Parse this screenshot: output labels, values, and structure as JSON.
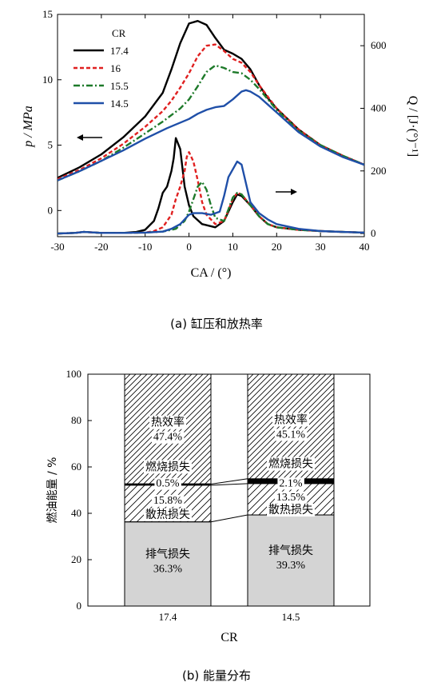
{
  "chart_data": [
    {
      "type": "line",
      "xlabel": "CA / (°)",
      "ylabel": "p / MPa",
      "y2label": "Q / [J·(°)⁻¹]",
      "xlim": [
        -30,
        40
      ],
      "ylim": [
        -2,
        15
      ],
      "y2lim": [
        -10,
        700
      ],
      "xticks": [
        "-30",
        "-20",
        "-10",
        "0",
        "10",
        "20",
        "30",
        "40"
      ],
      "yticks": [
        "0",
        "5",
        "10",
        "15"
      ],
      "y2ticks": [
        "0",
        "200",
        "400",
        "600"
      ],
      "legend": {
        "title": "CR",
        "placement": "top-left"
      },
      "caption": "(a) 缸压和放热率",
      "series": [
        {
          "name": "17.4",
          "color": "#000000",
          "style": "solid",
          "pressure": [
            [
              -30,
              2.5
            ],
            [
              -25,
              3.3
            ],
            [
              -20,
              4.3
            ],
            [
              -15,
              5.6
            ],
            [
              -10,
              7.2
            ],
            [
              -6,
              9.0
            ],
            [
              -4,
              10.8
            ],
            [
              -2,
              12.8
            ],
            [
              0,
              14.3
            ],
            [
              2,
              14.5
            ],
            [
              4,
              14.2
            ],
            [
              6,
              13.2
            ],
            [
              8,
              12.3
            ],
            [
              10,
              12.0
            ],
            [
              12,
              11.6
            ],
            [
              14,
              10.8
            ],
            [
              16,
              9.6
            ],
            [
              18,
              8.6
            ],
            [
              20,
              7.8
            ],
            [
              25,
              6.2
            ],
            [
              30,
              5.0
            ],
            [
              35,
              4.2
            ],
            [
              40,
              3.5
            ]
          ],
          "heat_release": [
            [
              -30,
              0
            ],
            [
              -26,
              2
            ],
            [
              -24,
              5
            ],
            [
              -20,
              2
            ],
            [
              -15,
              2
            ],
            [
              -12,
              5
            ],
            [
              -10,
              12
            ],
            [
              -8,
              40
            ],
            [
              -7,
              80
            ],
            [
              -6,
              130
            ],
            [
              -5,
              150
            ],
            [
              -4,
              200
            ],
            [
              -3.5,
              240
            ],
            [
              -3,
              305
            ],
            [
              -2,
              270
            ],
            [
              -1,
              150
            ],
            [
              0,
              90
            ],
            [
              1,
              55
            ],
            [
              3,
              30
            ],
            [
              6,
              20
            ],
            [
              8,
              40
            ],
            [
              10,
              100
            ],
            [
              11,
              125
            ],
            [
              12,
              120
            ],
            [
              14,
              90
            ],
            [
              16,
              55
            ],
            [
              18,
              30
            ],
            [
              20,
              20
            ],
            [
              25,
              12
            ],
            [
              30,
              8
            ],
            [
              35,
              5
            ],
            [
              40,
              3
            ]
          ]
        },
        {
          "name": "16",
          "color": "#e02020",
          "style": "dashed",
          "pressure": [
            [
              -30,
              2.4
            ],
            [
              -25,
              3.1
            ],
            [
              -20,
              4.0
            ],
            [
              -15,
              5.1
            ],
            [
              -10,
              6.4
            ],
            [
              -6,
              7.6
            ],
            [
              -4,
              8.4
            ],
            [
              -2,
              9.4
            ],
            [
              0,
              10.5
            ],
            [
              2,
              11.8
            ],
            [
              4,
              12.6
            ],
            [
              6,
              12.7
            ],
            [
              8,
              12.2
            ],
            [
              10,
              11.6
            ],
            [
              12,
              11.3
            ],
            [
              14,
              10.6
            ],
            [
              16,
              9.6
            ],
            [
              18,
              8.7
            ],
            [
              20,
              7.8
            ],
            [
              25,
              6.2
            ],
            [
              30,
              5.0
            ],
            [
              35,
              4.2
            ],
            [
              40,
              3.5
            ]
          ],
          "heat_release": [
            [
              -30,
              0
            ],
            [
              -26,
              2
            ],
            [
              -24,
              5
            ],
            [
              -20,
              2
            ],
            [
              -15,
              2
            ],
            [
              -10,
              3
            ],
            [
              -8,
              8
            ],
            [
              -6,
              20
            ],
            [
              -4,
              60
            ],
            [
              -3,
              110
            ],
            [
              -2,
              150
            ],
            [
              -1,
              200
            ],
            [
              -0.5,
              245
            ],
            [
              0,
              260
            ],
            [
              1,
              230
            ],
            [
              2,
              170
            ],
            [
              3,
              100
            ],
            [
              4,
              60
            ],
            [
              6,
              30
            ],
            [
              8,
              40
            ],
            [
              10,
              110
            ],
            [
              11,
              130
            ],
            [
              12,
              125
            ],
            [
              14,
              90
            ],
            [
              16,
              55
            ],
            [
              18,
              30
            ],
            [
              20,
              20
            ],
            [
              25,
              12
            ],
            [
              30,
              8
            ],
            [
              35,
              5
            ],
            [
              40,
              3
            ]
          ]
        },
        {
          "name": "15.5",
          "color": "#1e7a2a",
          "style": "dashdot",
          "pressure": [
            [
              -30,
              2.3
            ],
            [
              -25,
              3.0
            ],
            [
              -20,
              3.8
            ],
            [
              -15,
              4.8
            ],
            [
              -10,
              5.9
            ],
            [
              -6,
              6.8
            ],
            [
              -2,
              7.8
            ],
            [
              0,
              8.5
            ],
            [
              2,
              9.5
            ],
            [
              4,
              10.6
            ],
            [
              6,
              11.1
            ],
            [
              8,
              10.9
            ],
            [
              10,
              10.6
            ],
            [
              12,
              10.5
            ],
            [
              14,
              10.0
            ],
            [
              16,
              9.3
            ],
            [
              18,
              8.5
            ],
            [
              20,
              7.7
            ],
            [
              25,
              6.1
            ],
            [
              30,
              5.0
            ],
            [
              35,
              4.2
            ],
            [
              40,
              3.5
            ]
          ],
          "heat_release": [
            [
              -30,
              0
            ],
            [
              -26,
              2
            ],
            [
              -24,
              5
            ],
            [
              -20,
              2
            ],
            [
              -15,
              2
            ],
            [
              -10,
              3
            ],
            [
              -6,
              6
            ],
            [
              -3,
              15
            ],
            [
              -1,
              40
            ],
            [
              0,
              70
            ],
            [
              1,
              110
            ],
            [
              2,
              150
            ],
            [
              3,
              165
            ],
            [
              4,
              140
            ],
            [
              5,
              90
            ],
            [
              6,
              50
            ],
            [
              8,
              40
            ],
            [
              10,
              115
            ],
            [
              11,
              130
            ],
            [
              12,
              125
            ],
            [
              14,
              90
            ],
            [
              16,
              55
            ],
            [
              18,
              30
            ],
            [
              20,
              20
            ],
            [
              25,
              12
            ],
            [
              30,
              8
            ],
            [
              35,
              5
            ],
            [
              40,
              3
            ]
          ]
        },
        {
          "name": "14.5",
          "color": "#1f4fa8",
          "style": "solid",
          "pressure": [
            [
              -30,
              2.3
            ],
            [
              -25,
              3.0
            ],
            [
              -20,
              3.8
            ],
            [
              -15,
              4.6
            ],
            [
              -10,
              5.5
            ],
            [
              -5,
              6.3
            ],
            [
              0,
              7.0
            ],
            [
              2,
              7.4
            ],
            [
              4,
              7.7
            ],
            [
              6,
              7.9
            ],
            [
              8,
              8.0
            ],
            [
              10,
              8.5
            ],
            [
              12,
              9.1
            ],
            [
              13,
              9.2
            ],
            [
              14,
              9.1
            ],
            [
              16,
              8.7
            ],
            [
              18,
              8.1
            ],
            [
              20,
              7.5
            ],
            [
              25,
              6.0
            ],
            [
              30,
              4.9
            ],
            [
              35,
              4.1
            ],
            [
              40,
              3.5
            ]
          ],
          "heat_release": [
            [
              -30,
              0
            ],
            [
              -26,
              2
            ],
            [
              -24,
              5
            ],
            [
              -20,
              2
            ],
            [
              -15,
              2
            ],
            [
              -10,
              3
            ],
            [
              -6,
              6
            ],
            [
              -4,
              15
            ],
            [
              -2,
              30
            ],
            [
              0,
              60
            ],
            [
              1,
              65
            ],
            [
              3,
              65
            ],
            [
              5,
              60
            ],
            [
              7,
              70
            ],
            [
              8,
              120
            ],
            [
              9,
              180
            ],
            [
              10,
              205
            ],
            [
              11,
              230
            ],
            [
              12,
              220
            ],
            [
              13,
              160
            ],
            [
              14,
              100
            ],
            [
              16,
              65
            ],
            [
              18,
              45
            ],
            [
              20,
              30
            ],
            [
              25,
              15
            ],
            [
              30,
              8
            ],
            [
              35,
              5
            ],
            [
              40,
              3
            ]
          ]
        }
      ]
    },
    {
      "type": "bar",
      "stacked": true,
      "xlabel": "CR",
      "ylabel": "燃油能量 / %",
      "ylim": [
        0,
        100
      ],
      "yticks": [
        "0",
        "20",
        "40",
        "60",
        "80",
        "100"
      ],
      "categories": [
        "17.4",
        "14.5"
      ],
      "caption": "(b) 能量分布",
      "series": [
        {
          "name": "排气损失",
          "values": [
            36.3,
            39.3
          ],
          "labels": [
            "36.3%",
            "39.3%"
          ]
        },
        {
          "name": "散热损失",
          "values": [
            15.8,
            13.5
          ],
          "labels": [
            "15.8%",
            "13.5%"
          ]
        },
        {
          "name": "燃烧损失",
          "values": [
            0.5,
            2.1
          ],
          "labels": [
            "0.5%",
            "2.1%"
          ]
        },
        {
          "name": "热效率",
          "values": [
            47.4,
            45.1
          ],
          "labels": [
            "47.4%",
            "45.1%"
          ]
        }
      ]
    }
  ]
}
